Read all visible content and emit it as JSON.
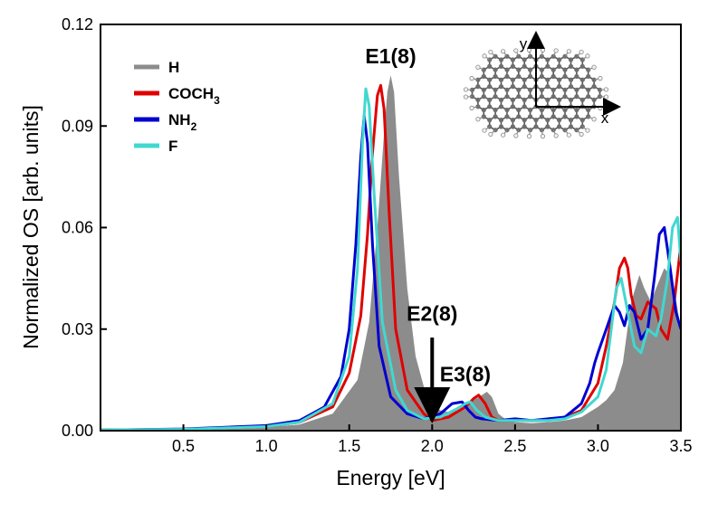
{
  "chart_data": {
    "type": "line",
    "xlabel": "Energy [eV]",
    "ylabel": "Normalized OS [arb. units]",
    "xlim": [
      0.0,
      3.5
    ],
    "ylim": [
      0.0,
      0.12
    ],
    "xticks": [
      0.5,
      1.0,
      1.5,
      2.0,
      2.5,
      3.0,
      3.5
    ],
    "xtick_labels": [
      "0.5",
      "1.0",
      "1.5",
      "2.0",
      "2.5",
      "3.0",
      "3.5"
    ],
    "yticks": [
      0.0,
      0.03,
      0.06,
      0.09,
      0.12
    ],
    "ytick_labels": [
      "0.00",
      "0.03",
      "0.06",
      "0.09",
      "0.12"
    ],
    "grid": false,
    "legend_position": "top-left",
    "legend": [
      {
        "name": "H",
        "sub": "",
        "color": "#8c8c8c"
      },
      {
        "name": "COCH",
        "sub": "3",
        "color": "#e00000"
      },
      {
        "name": "NH",
        "sub": "2",
        "color": "#0000d0"
      },
      {
        "name": "F",
        "sub": "",
        "color": "#40d8d0"
      }
    ],
    "series": [
      {
        "name": "H",
        "style": "filled",
        "color": "#8c8c8c",
        "x": [
          0.0,
          0.5,
          1.0,
          1.2,
          1.4,
          1.55,
          1.62,
          1.67,
          1.71,
          1.73,
          1.75,
          1.77,
          1.8,
          1.85,
          1.9,
          1.95,
          2.0,
          2.05,
          2.1,
          2.15,
          2.2,
          2.25,
          2.3,
          2.33,
          2.36,
          2.4,
          2.45,
          2.5,
          2.6,
          2.7,
          2.8,
          2.9,
          3.0,
          3.05,
          3.1,
          3.15,
          3.2,
          3.25,
          3.28,
          3.32,
          3.35,
          3.4,
          3.45,
          3.5
        ],
        "y": [
          0.0002,
          0.0004,
          0.001,
          0.0018,
          0.005,
          0.015,
          0.032,
          0.06,
          0.088,
          0.1,
          0.105,
          0.1,
          0.075,
          0.042,
          0.022,
          0.013,
          0.008,
          0.006,
          0.0055,
          0.006,
          0.007,
          0.009,
          0.0105,
          0.0115,
          0.01,
          0.005,
          0.003,
          0.0025,
          0.0022,
          0.0025,
          0.003,
          0.004,
          0.007,
          0.009,
          0.012,
          0.02,
          0.038,
          0.046,
          0.042,
          0.038,
          0.042,
          0.048,
          0.045,
          0.03
        ]
      },
      {
        "name": "COCH3",
        "style": "line",
        "color": "#e00000",
        "x": [
          0.0,
          0.5,
          1.0,
          1.2,
          1.4,
          1.5,
          1.57,
          1.61,
          1.64,
          1.67,
          1.69,
          1.71,
          1.74,
          1.78,
          1.85,
          1.95,
          2.0,
          2.1,
          2.2,
          2.25,
          2.28,
          2.32,
          2.36,
          2.4,
          2.5,
          2.6,
          2.7,
          2.8,
          2.9,
          3.0,
          3.05,
          3.1,
          3.13,
          3.16,
          3.18,
          3.2,
          3.23,
          3.26,
          3.3,
          3.35,
          3.38,
          3.42,
          3.46,
          3.5
        ],
        "y": [
          0.0002,
          0.0004,
          0.0012,
          0.0025,
          0.007,
          0.017,
          0.034,
          0.058,
          0.082,
          0.099,
          0.102,
          0.095,
          0.065,
          0.03,
          0.012,
          0.005,
          0.003,
          0.004,
          0.007,
          0.0095,
          0.0105,
          0.008,
          0.004,
          0.003,
          0.003,
          0.003,
          0.003,
          0.004,
          0.006,
          0.014,
          0.025,
          0.038,
          0.048,
          0.051,
          0.048,
          0.04,
          0.034,
          0.033,
          0.038,
          0.036,
          0.03,
          0.027,
          0.038,
          0.055
        ]
      },
      {
        "name": "NH2",
        "style": "line",
        "color": "#0000d0",
        "x": [
          0.0,
          0.5,
          1.0,
          1.2,
          1.35,
          1.45,
          1.5,
          1.54,
          1.57,
          1.59,
          1.61,
          1.64,
          1.68,
          1.75,
          1.85,
          1.95,
          2.05,
          2.12,
          2.18,
          2.22,
          2.26,
          2.3,
          2.4,
          2.5,
          2.6,
          2.7,
          2.8,
          2.9,
          2.95,
          2.98,
          3.0,
          3.05,
          3.1,
          3.13,
          3.16,
          3.19,
          3.22,
          3.26,
          3.3,
          3.34,
          3.37,
          3.4,
          3.43,
          3.47,
          3.5
        ],
        "y": [
          0.0002,
          0.0005,
          0.0015,
          0.003,
          0.007,
          0.016,
          0.03,
          0.055,
          0.081,
          0.093,
          0.085,
          0.055,
          0.025,
          0.01,
          0.005,
          0.0035,
          0.005,
          0.008,
          0.0085,
          0.006,
          0.004,
          0.0035,
          0.003,
          0.0035,
          0.003,
          0.0035,
          0.004,
          0.008,
          0.014,
          0.02,
          0.023,
          0.03,
          0.037,
          0.035,
          0.031,
          0.037,
          0.035,
          0.027,
          0.03,
          0.045,
          0.058,
          0.06,
          0.05,
          0.035,
          0.03
        ]
      },
      {
        "name": "F",
        "style": "line",
        "color": "#40d8d0",
        "x": [
          0.0,
          0.5,
          1.0,
          1.2,
          1.4,
          1.5,
          1.55,
          1.58,
          1.6,
          1.62,
          1.65,
          1.7,
          1.78,
          1.85,
          1.95,
          2.05,
          2.15,
          2.2,
          2.23,
          2.27,
          2.32,
          2.4,
          2.5,
          2.6,
          2.7,
          2.8,
          2.9,
          3.0,
          3.05,
          3.08,
          3.11,
          3.14,
          3.18,
          3.22,
          3.26,
          3.3,
          3.35,
          3.38,
          3.42,
          3.45,
          3.48,
          3.5
        ],
        "y": [
          0.0002,
          0.0004,
          0.0012,
          0.0025,
          0.008,
          0.022,
          0.048,
          0.085,
          0.101,
          0.096,
          0.07,
          0.032,
          0.012,
          0.006,
          0.0035,
          0.004,
          0.0065,
          0.008,
          0.0085,
          0.006,
          0.004,
          0.003,
          0.003,
          0.003,
          0.003,
          0.0035,
          0.0055,
          0.01,
          0.018,
          0.03,
          0.042,
          0.045,
          0.035,
          0.025,
          0.023,
          0.03,
          0.028,
          0.033,
          0.045,
          0.06,
          0.063,
          0.05
        ]
      }
    ],
    "annotations": [
      {
        "text": "E1(8)",
        "x": 1.75,
        "y": 0.1085
      },
      {
        "text": "E2(8)",
        "x": 2.0,
        "y": 0.0325
      },
      {
        "text": "E3(8)",
        "x": 2.2,
        "y": 0.0145
      }
    ],
    "arrow": {
      "x": 2.0,
      "y_start": 0.0275,
      "y_end": 0.0075
    },
    "inset": {
      "x_axis_label": "x",
      "y_axis_label": "y"
    }
  }
}
